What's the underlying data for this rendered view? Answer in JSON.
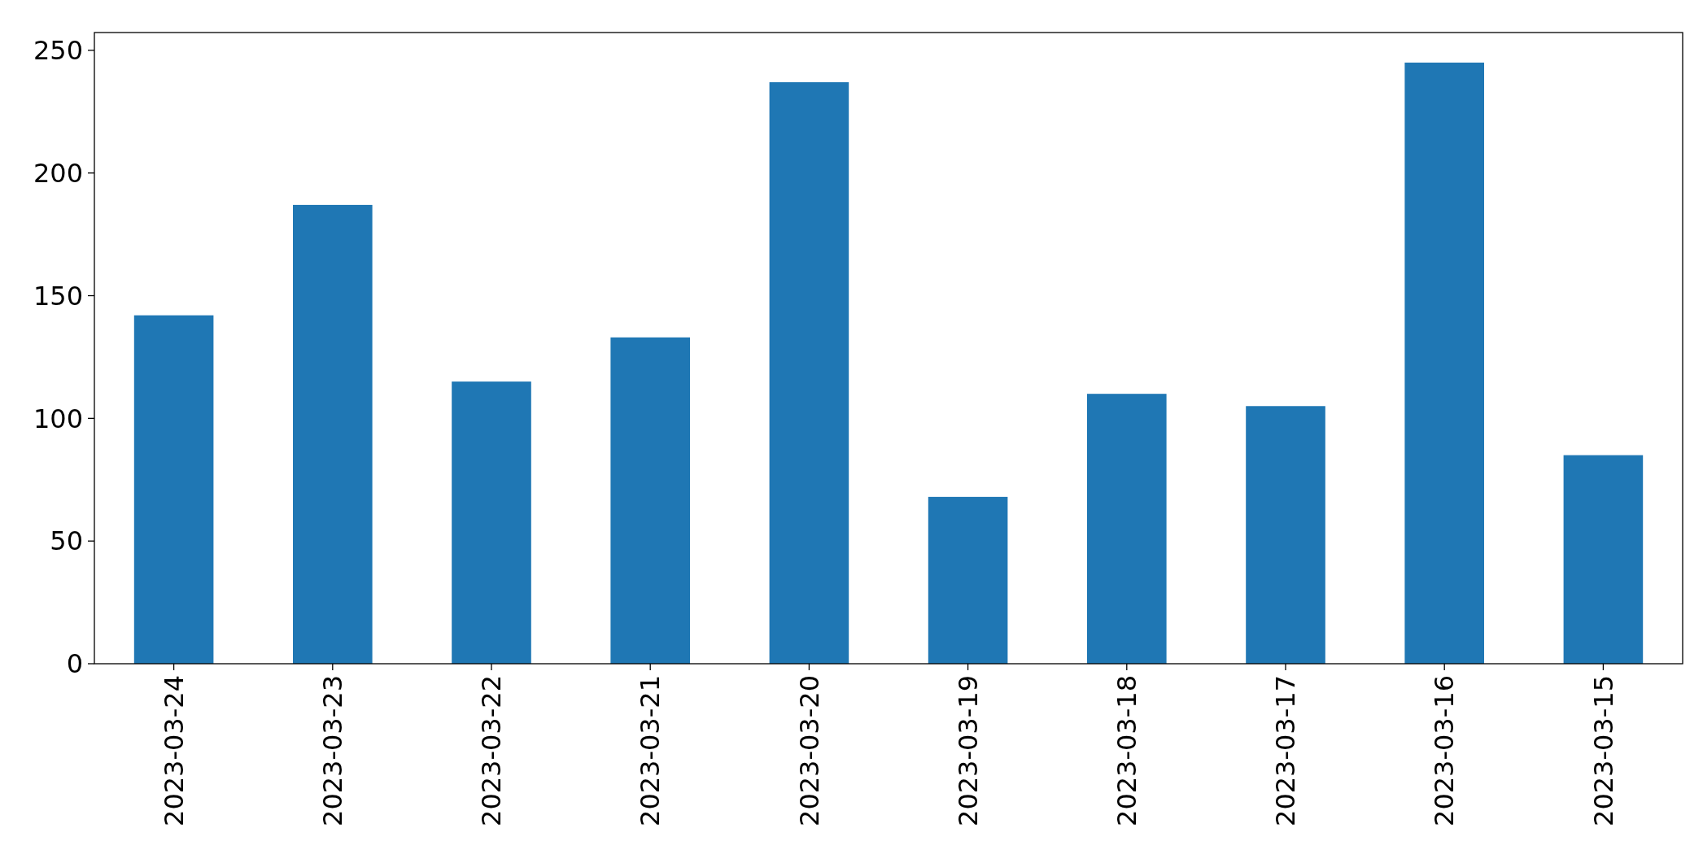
{
  "chart_data": {
    "type": "bar",
    "categories": [
      "2023-03-24",
      "2023-03-23",
      "2023-03-22",
      "2023-03-21",
      "2023-03-20",
      "2023-03-19",
      "2023-03-18",
      "2023-03-17",
      "2023-03-16",
      "2023-03-15"
    ],
    "values": [
      142,
      187,
      115,
      133,
      237,
      68,
      110,
      105,
      245,
      85
    ],
    "color": "#1f77b4",
    "ylim": [
      0,
      257.25
    ],
    "yticks": [
      0,
      50,
      100,
      150,
      200,
      250
    ],
    "grid": false
  }
}
